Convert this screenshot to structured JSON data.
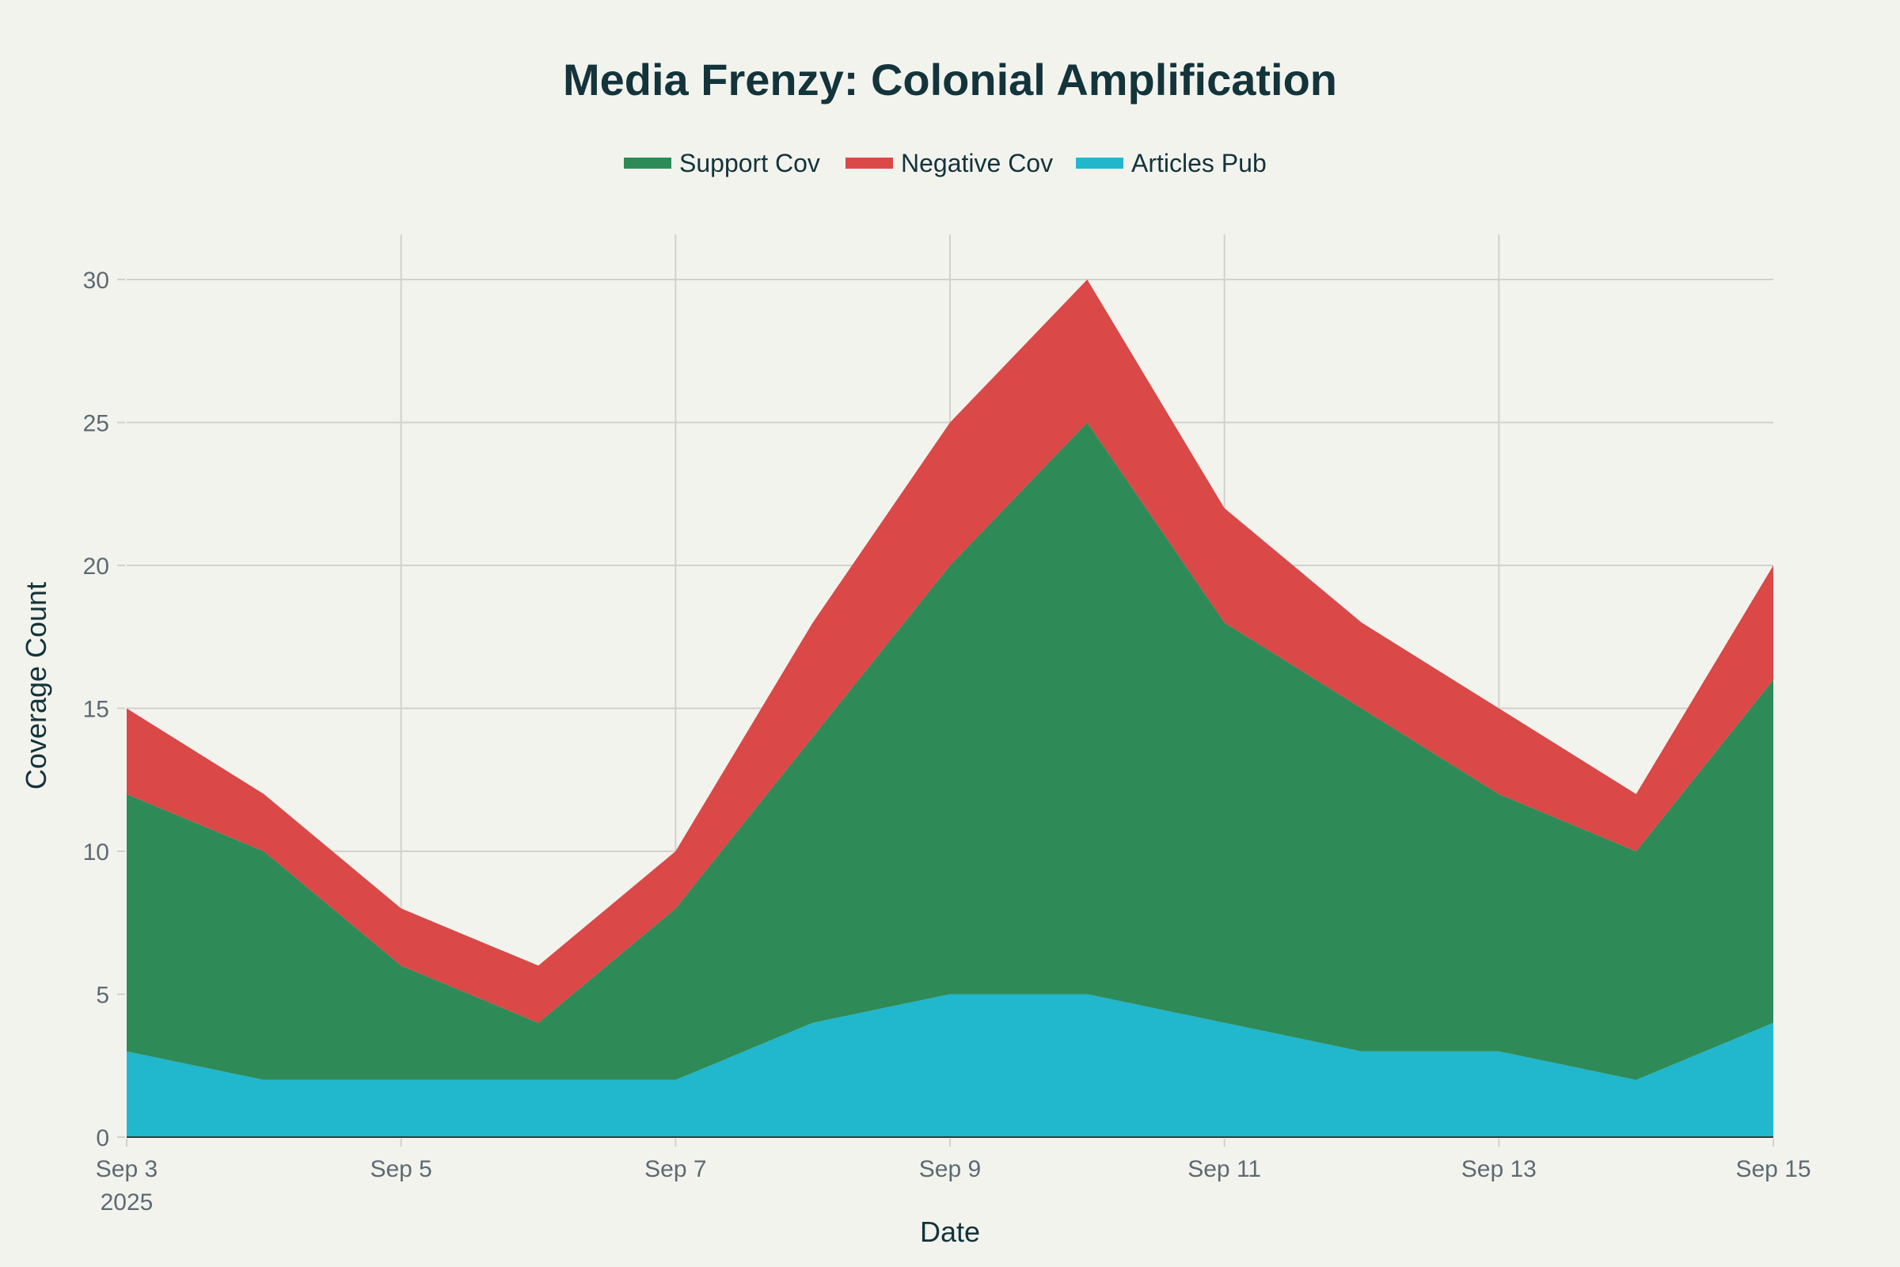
{
  "chart_data": {
    "type": "area",
    "stacked": true,
    "title": "Media Frenzy: Colonial Amplification",
    "xlabel": "Date",
    "ylabel": "Coverage Count",
    "x": [
      "2025-09-03",
      "2025-09-04",
      "2025-09-05",
      "2025-09-06",
      "2025-09-07",
      "2025-09-08",
      "2025-09-09",
      "2025-09-10",
      "2025-09-11",
      "2025-09-12",
      "2025-09-13",
      "2025-09-14",
      "2025-09-15"
    ],
    "x_tick_labels": [
      {
        "date": "2025-09-03",
        "label": "Sep 3",
        "sublabel": "2025"
      },
      {
        "date": "2025-09-05",
        "label": "Sep 5"
      },
      {
        "date": "2025-09-07",
        "label": "Sep 7"
      },
      {
        "date": "2025-09-09",
        "label": "Sep 9"
      },
      {
        "date": "2025-09-11",
        "label": "Sep 11"
      },
      {
        "date": "2025-09-13",
        "label": "Sep 13"
      },
      {
        "date": "2025-09-15",
        "label": "Sep 15"
      }
    ],
    "y_ticks": [
      0,
      5,
      10,
      15,
      20,
      25,
      30
    ],
    "ylim": [
      0,
      31.5
    ],
    "grid": true,
    "legend_position": "top-center",
    "stack_order": [
      "Articles Pub",
      "Support Cov",
      "Negative Cov"
    ],
    "series": [
      {
        "name": "Support Cov",
        "color": "#2e8b57",
        "values": [
          9,
          8,
          4,
          2,
          6,
          10,
          15,
          20,
          14,
          12,
          9,
          8,
          12
        ]
      },
      {
        "name": "Negative Cov",
        "color": "#db4848",
        "values": [
          3,
          2,
          2,
          2,
          2,
          4,
          5,
          5,
          4,
          3,
          3,
          2,
          4
        ]
      },
      {
        "name": "Articles Pub",
        "color": "#21b7cd",
        "values": [
          3,
          2,
          2,
          2,
          2,
          4,
          5,
          5,
          4,
          3,
          3,
          2,
          4
        ]
      }
    ]
  }
}
